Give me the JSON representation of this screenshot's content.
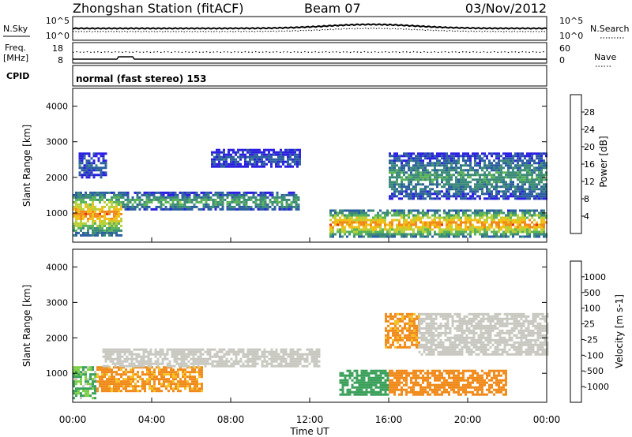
{
  "header": {
    "station": "Zhongshan Station (fitACF)",
    "beam": "Beam 07",
    "date": "03/Nov/2012"
  },
  "top_panels": {
    "nsky_label": "N.Sky",
    "nsearch_label": "N.Search",
    "nave_label": "Nave",
    "freq_label_1": "Freq.",
    "freq_label_2": "[MHz]",
    "cpid_label": "CPID",
    "cpid_text": "normal (fast stereo) 153",
    "noise_ticks": [
      "10^5",
      "10^0"
    ],
    "freq_ticks": [
      "18",
      "8"
    ],
    "nave_ticks": [
      "60",
      "0"
    ]
  },
  "axes": {
    "ylabel": "Slant Range [km]",
    "xlabel": "Time UT",
    "yticks": [
      "4000",
      "3000",
      "2000",
      "1000"
    ],
    "xticks": [
      "00:00",
      "04:00",
      "08:00",
      "12:00",
      "16:00",
      "20:00",
      "00:00"
    ]
  },
  "power_scale": {
    "label": "Power [dB]",
    "ticks": [
      "28",
      "24",
      "20",
      "16",
      "12",
      "8",
      "4"
    ],
    "colors": [
      "#2a1fe0",
      "#2c5fa0",
      "#3c8a78",
      "#5ab35a",
      "#b8d03a",
      "#f0c018",
      "#f08a1a",
      "#e83010"
    ]
  },
  "velocity_scale": {
    "label": "Velocity [m s-1]",
    "ticks": [
      "1000",
      "500",
      "100",
      "25",
      "-25",
      "-100",
      "-500",
      "-1000"
    ],
    "colors": [
      "#1d3fa8",
      "#2c7a8a",
      "#3aa05a",
      "#7ccf45",
      "#c8c8c0",
      "#f5c020",
      "#f08a1a",
      "#e86018",
      "#e82010"
    ]
  },
  "chart_data": {
    "type": "heatmap",
    "title": "Zhongshan Station (fitACF) Beam 07 03/Nov/2012",
    "xlabel": "Time UT",
    "ylabel": "Slant Range [km]",
    "x_range_hours": [
      0,
      24
    ],
    "y_range_km": [
      180,
      4500
    ],
    "power_regions_db": [
      {
        "t": [
          0.0,
          2.5
        ],
        "r": [
          400,
          1600
        ],
        "peak": 26
      },
      {
        "t": [
          0.3,
          1.7
        ],
        "r": [
          2000,
          2700
        ],
        "peak": 6
      },
      {
        "t": [
          2.5,
          11.5
        ],
        "r": [
          1100,
          1600
        ],
        "peak": 14
      },
      {
        "t": [
          7.0,
          11.5
        ],
        "r": [
          2300,
          2800
        ],
        "peak": 6
      },
      {
        "t": [
          13.0,
          24.0
        ],
        "r": [
          350,
          1100
        ],
        "peak": 27
      },
      {
        "t": [
          16.0,
          24.0
        ],
        "r": [
          1400,
          2700
        ],
        "peak": 12
      }
    ],
    "velocity_regions_ms": [
      {
        "t": [
          0.0,
          1.2
        ],
        "r": [
          300,
          1200
        ],
        "v": 100
      },
      {
        "t": [
          1.2,
          6.5
        ],
        "r": [
          500,
          1200
        ],
        "v": -150
      },
      {
        "t": [
          1.5,
          12.5
        ],
        "r": [
          1200,
          1700
        ],
        "v": 0
      },
      {
        "t": [
          13.5,
          16.0
        ],
        "r": [
          400,
          1100
        ],
        "v": 200
      },
      {
        "t": [
          16.0,
          22.0
        ],
        "r": [
          400,
          1100
        ],
        "v": -200
      },
      {
        "t": [
          15.8,
          17.5
        ],
        "r": [
          1700,
          2700
        ],
        "v": -150
      },
      {
        "t": [
          17.5,
          24.0
        ],
        "r": [
          1500,
          2700
        ],
        "v": 0
      }
    ]
  }
}
